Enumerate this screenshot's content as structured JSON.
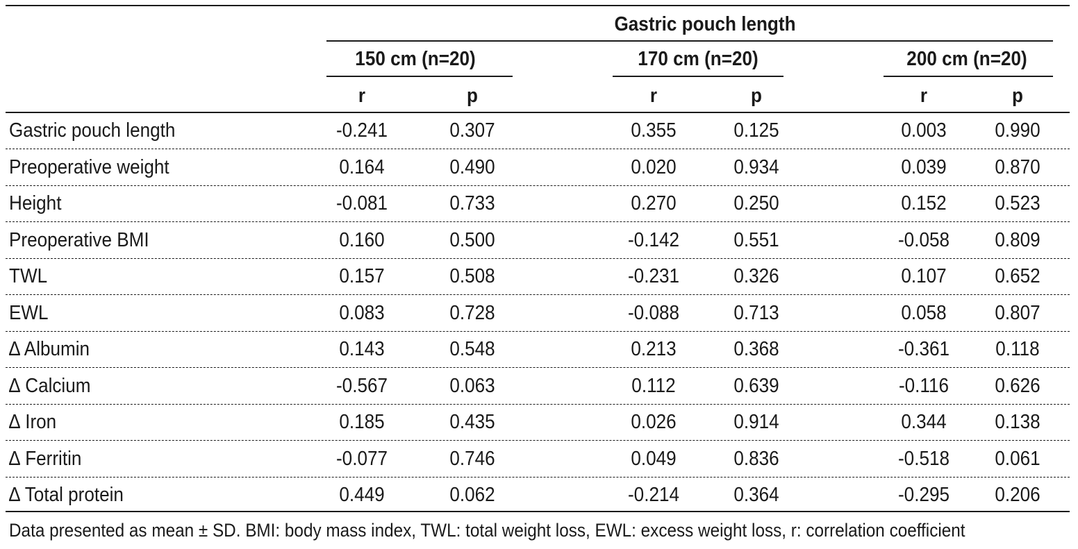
{
  "header": {
    "group_title": "Gastric pouch length",
    "groups": [
      "150 cm (n=20)",
      "170 cm (n=20)",
      "200 cm (n=20)"
    ],
    "subcols": [
      "r",
      "p",
      "r",
      "p",
      "r",
      "p"
    ]
  },
  "rows": [
    {
      "label": "Gastric pouch length",
      "values": [
        "-0.241",
        "0.307",
        "0.355",
        "0.125",
        "0.003",
        "0.990"
      ]
    },
    {
      "label": "Preoperative weight",
      "values": [
        "0.164",
        "0.490",
        "0.020",
        "0.934",
        "0.039",
        "0.870"
      ]
    },
    {
      "label": "Height",
      "values": [
        "-0.081",
        "0.733",
        "0.270",
        "0.250",
        "0.152",
        "0.523"
      ]
    },
    {
      "label": "Preoperative BMI",
      "values": [
        "0.160",
        "0.500",
        "-0.142",
        "0.551",
        "-0.058",
        "0.809"
      ]
    },
    {
      "label": "TWL",
      "values": [
        "0.157",
        "0.508",
        "-0.231",
        "0.326",
        "0.107",
        "0.652"
      ]
    },
    {
      "label": "EWL",
      "values": [
        "0.083",
        "0.728",
        "-0.088",
        "0.713",
        "0.058",
        "0.807"
      ]
    },
    {
      "label": "∆ Albumin",
      "values": [
        "0.143",
        "0.548",
        "0.213",
        "0.368",
        "-0.361",
        "0.118"
      ]
    },
    {
      "label": "∆ Calcium",
      "values": [
        "-0.567",
        "0.063",
        "0.112",
        "0.639",
        "-0.116",
        "0.626"
      ]
    },
    {
      "label": "∆ Iron",
      "values": [
        "0.185",
        "0.435",
        "0.026",
        "0.914",
        "0.344",
        "0.138"
      ]
    },
    {
      "label": "∆ Ferritin",
      "values": [
        "-0.077",
        "0.746",
        "0.049",
        "0.836",
        "-0.518",
        "0.061"
      ]
    },
    {
      "label": "∆ Total protein",
      "values": [
        "0.449",
        "0.062",
        "-0.214",
        "0.364",
        "-0.295",
        "0.206"
      ]
    }
  ],
  "footnote": "Data presented as mean ± SD. BMI: body mass index, TWL: total weight loss, EWL: excess weight loss, r: correlation coefficient"
}
